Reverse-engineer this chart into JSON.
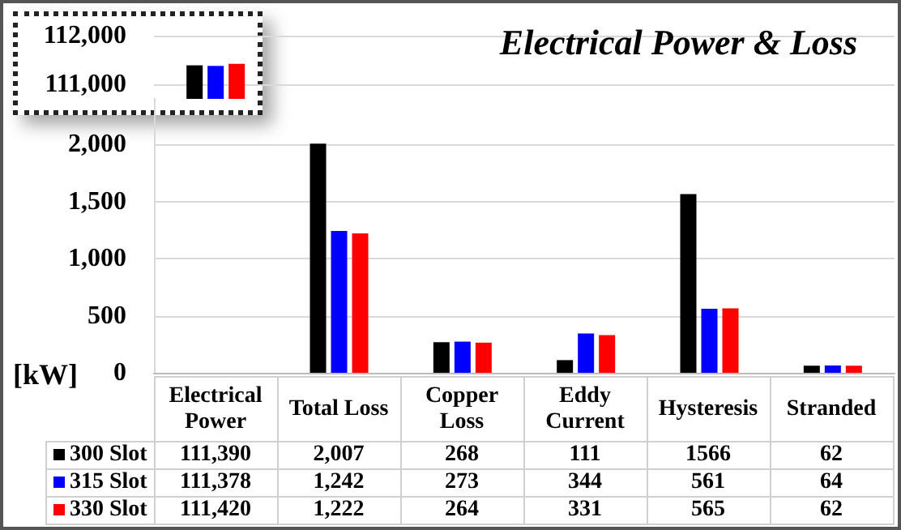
{
  "chart_data": [
    {
      "type": "bar",
      "title": "Electrical Power & Loss",
      "categories": [
        null,
        null,
        null,
        null,
        null,
        null
      ],
      "ylim": [
        110700,
        112000
      ],
      "yticks": [
        {
          "value": 111000,
          "label": "111,000"
        },
        {
          "value": 112000,
          "label": "112,000"
        }
      ],
      "grid": "y",
      "tick_labels": "y",
      "series": [
        {
          "color": "#000000",
          "values": [
            111390,
            null,
            null,
            null,
            null,
            null
          ]
        },
        {
          "color": "#0000ff",
          "values": [
            111378,
            null,
            null,
            null,
            null,
            null
          ]
        },
        {
          "color": "#ff0000",
          "values": [
            111420,
            null,
            null,
            null,
            null,
            null
          ]
        }
      ]
    },
    {
      "type": "bar",
      "ylabel": "[kW]",
      "legend": "bottom left",
      "categories": [
        "Electrical Power",
        "Total Loss",
        "Copper Loss",
        "Eddy Current",
        "Hysteresis",
        "Stranded"
      ],
      "ylim": [
        0,
        2400
      ],
      "yticks": [
        0,
        500,
        {
          "value": 1000,
          "label": "1,000"
        },
        {
          "value": 1500,
          "label": "1,500"
        },
        {
          "value": 2000,
          "label": "2,000"
        }
      ],
      "grid": "y",
      "tick_labels": "y",
      "series": [
        {
          "name": "300 Slot",
          "color": "#000000",
          "values": [
            null,
            2007,
            268,
            111,
            1566,
            62
          ],
          "value_labels": [
            "111,390",
            "2,007",
            "268",
            "111",
            "1566",
            "62"
          ]
        },
        {
          "name": "315 Slot",
          "color": "#0000ff",
          "values": [
            null,
            1242,
            273,
            344,
            561,
            64
          ],
          "value_labels": [
            "111,378",
            "1,242",
            "273",
            "344",
            "561",
            "64"
          ]
        },
        {
          "name": "330 Slot",
          "color": "#ff0000",
          "values": [
            null,
            1222,
            264,
            331,
            565,
            62
          ],
          "value_labels": [
            "111,420",
            "1,222",
            "264",
            "331",
            "565",
            "62"
          ]
        }
      ]
    }
  ]
}
